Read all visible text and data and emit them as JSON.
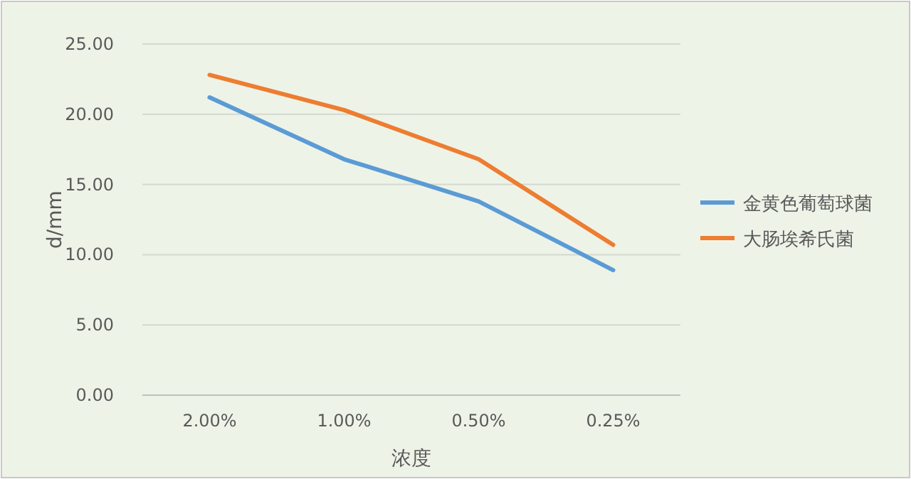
{
  "chart_data": {
    "type": "line",
    "xlabel": "浓度",
    "ylabel": "d/mm",
    "categories": [
      "2.00%",
      "1.00%",
      "0.50%",
      "0.25%"
    ],
    "series": [
      {
        "name": "金黄色葡萄球菌",
        "color": "#5b9bd5",
        "values": [
          21.2,
          16.8,
          13.8,
          8.9
        ]
      },
      {
        "name": "大肠埃希氏菌",
        "color": "#ed7d31",
        "values": [
          22.8,
          20.3,
          16.8,
          10.7
        ]
      }
    ],
    "ylim": [
      0,
      25
    ],
    "yticks": [
      {
        "value": 0,
        "label": "0.00"
      },
      {
        "value": 5,
        "label": "5.00"
      },
      {
        "value": 10,
        "label": "10.00"
      },
      {
        "value": 15,
        "label": "15.00"
      },
      {
        "value": 20,
        "label": "20.00"
      },
      {
        "value": 25,
        "label": "25.00"
      }
    ],
    "grid": "y",
    "legend": "right"
  }
}
